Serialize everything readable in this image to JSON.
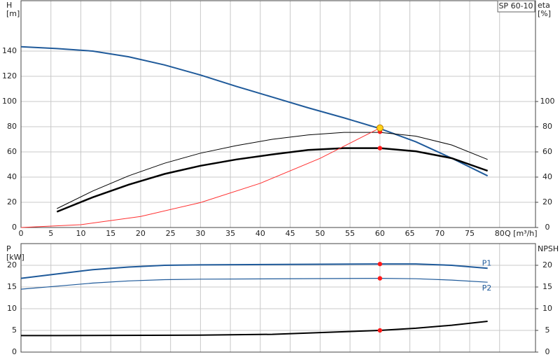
{
  "chart_data": [
    {
      "type": "line",
      "title": "SP 60-10",
      "y_label": "H",
      "y_unit": "[m]",
      "y2_label": "eta",
      "y2_unit": "[%]",
      "x_label": "Q [m³/h]",
      "xlim": [
        0,
        86
      ],
      "xticks": [
        0,
        5,
        10,
        15,
        20,
        25,
        30,
        35,
        40,
        45,
        50,
        55,
        60,
        65,
        70,
        75,
        80
      ],
      "ylim": [
        0,
        180
      ],
      "yticks": [
        0,
        20,
        40,
        60,
        80,
        100,
        120,
        140
      ],
      "y2lim": [
        0,
        180
      ],
      "y2ticks": [
        0,
        20,
        40,
        60,
        80,
        100
      ],
      "grid": true,
      "series": [
        {
          "color": "#1f5a9a",
          "width": 2,
          "x": [
            0,
            6,
            12,
            18,
            24,
            30,
            36,
            42,
            48,
            54,
            60,
            66,
            72,
            78
          ],
          "values": [
            143.5,
            142,
            140,
            135.5,
            129,
            121,
            112,
            103.5,
            95,
            87,
            78.5,
            68,
            55,
            41
          ]
        },
        {
          "color": "#000000",
          "width": 1,
          "axis": "y2",
          "x": [
            6,
            12,
            18,
            24,
            30,
            36,
            42,
            48,
            54,
            60,
            66,
            72,
            78
          ],
          "values": [
            15,
            29,
            41,
            51,
            59,
            65,
            70,
            73.5,
            75.5,
            75.5,
            72.5,
            65.5,
            54
          ]
        },
        {
          "color": "#000000",
          "width": 2.5,
          "axis": "y2",
          "x": [
            6,
            12,
            18,
            24,
            30,
            36,
            42,
            48,
            54,
            60,
            66,
            72,
            78
          ],
          "values": [
            12.5,
            24,
            34,
            42.5,
            49,
            54,
            58,
            61.5,
            63,
            63,
            60.5,
            55,
            45
          ]
        },
        {
          "color": "#ff3030",
          "width": 1,
          "x": [
            0,
            10,
            20,
            30,
            40,
            50,
            60
          ],
          "values": [
            0,
            2.2,
            8.8,
            19.75,
            35.1,
            54.9,
            79
          ]
        }
      ],
      "points": [
        {
          "x": 60,
          "y": 76,
          "color": "#ff1a1a"
        },
        {
          "x": 60,
          "y": 63,
          "color": "#ff1a1a"
        },
        {
          "x": 60,
          "y": 79,
          "color": "#ffd21a"
        }
      ]
    },
    {
      "type": "line",
      "y_label": "P",
      "y_unit": "[kW]",
      "y2_label": "NPSH",
      "xlim": [
        0,
        86
      ],
      "xticks": [
        0,
        5,
        10,
        15,
        20,
        25,
        30,
        35,
        40,
        45,
        50,
        55,
        60,
        65,
        70,
        75,
        80
      ],
      "ylim": [
        0,
        25
      ],
      "yticks": [
        0,
        5,
        10,
        15,
        20
      ],
      "y2lim": [
        0,
        25
      ],
      "y2ticks": [
        0,
        5,
        10,
        15,
        20
      ],
      "grid": true,
      "series": [
        {
          "name": "P1",
          "color": "#1f5a9a",
          "width": 2,
          "x": [
            0,
            6,
            12,
            18,
            24,
            30,
            60,
            66,
            72,
            78
          ],
          "values": [
            17,
            18,
            19,
            19.6,
            20,
            20.1,
            20.3,
            20.3,
            20,
            19.3
          ]
        },
        {
          "name": "P2",
          "color": "#1f5a9a",
          "width": 1.2,
          "x": [
            0,
            6,
            12,
            18,
            24,
            30,
            60,
            66,
            72,
            78
          ],
          "values": [
            14.5,
            15.2,
            15.9,
            16.4,
            16.7,
            16.8,
            17,
            16.9,
            16.6,
            16.1
          ]
        },
        {
          "color": "#000000",
          "width": 2,
          "axis": "y2",
          "x": [
            0,
            6,
            30,
            42,
            48,
            54,
            60,
            66,
            72,
            78
          ],
          "values": [
            3.8,
            3.8,
            3.9,
            4.1,
            4.4,
            4.7,
            5,
            5.5,
            6.2,
            7.1
          ]
        }
      ],
      "points": [
        {
          "x": 60,
          "y": 20.3,
          "color": "#ff1a1a"
        },
        {
          "x": 60,
          "y": 17,
          "color": "#ff1a1a"
        },
        {
          "x": 60,
          "y": 5,
          "color": "#ff1a1a"
        }
      ]
    }
  ]
}
